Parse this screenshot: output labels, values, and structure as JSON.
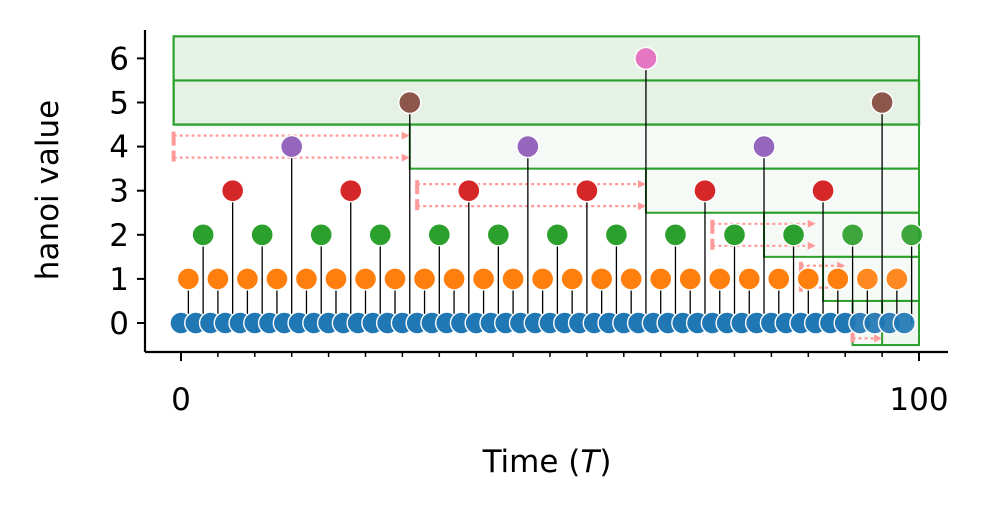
{
  "chart_data": {
    "type": "scatter",
    "title": "",
    "xlabel": "Time (",
    "xlabel_var": "T",
    "xlabel_end": ")",
    "ylabel": "hanoi value",
    "xlim": [
      -2,
      104
    ],
    "ylim": [
      -0.65,
      6.6
    ],
    "x_major_ticks": [
      0,
      100
    ],
    "x_tick_labels": [
      "0",
      "100"
    ],
    "x_minor_ticks": [
      5,
      10,
      15,
      20,
      25,
      30,
      35,
      40,
      45,
      50,
      55,
      60,
      65,
      70,
      75,
      80,
      85,
      90,
      95
    ],
    "y_ticks": [
      0,
      1,
      2,
      3,
      4,
      5,
      6
    ],
    "y_tick_labels": [
      "0",
      "1",
      "2",
      "3",
      "4",
      "5",
      "6"
    ],
    "grid": false,
    "legend": "none",
    "x_step": 2,
    "values": [
      0,
      1,
      0,
      2,
      0,
      1,
      0,
      3,
      0,
      1,
      0,
      2,
      0,
      1,
      0,
      4,
      0,
      1,
      0,
      2,
      0,
      1,
      0,
      3,
      0,
      1,
      0,
      2,
      0,
      1,
      0,
      5,
      0,
      1,
      0,
      2,
      0,
      1,
      0,
      3,
      0,
      1,
      0,
      2,
      0,
      1,
      0,
      4,
      0,
      1,
      0,
      2,
      0,
      1,
      0,
      3,
      0,
      1,
      0,
      2,
      0,
      1,
      0,
      6,
      0,
      1,
      0,
      2,
      0,
      1,
      0,
      3,
      0,
      1,
      0,
      2,
      0,
      1,
      0,
      4,
      0,
      1,
      0,
      2,
      0,
      1,
      0,
      3,
      0,
      1,
      0,
      2,
      0,
      1,
      0,
      5,
      0,
      1,
      0,
      2
    ],
    "window_values": [
      1,
      1,
      2,
      5
    ],
    "level_colors": [
      "#1f77b4",
      "#ff7f0e",
      "#2ca02c",
      "#d62728",
      "#9467bd",
      "#8c564b",
      "#e377c2"
    ],
    "box_color": "#2ca02c",
    "box_fill": "#e6f2e6",
    "arrow_color": "#ff9a9a",
    "boxes": [
      {
        "x0": -1,
        "x1": 100,
        "y0": 4.5,
        "y1": 6.5
      },
      {
        "x0": -1,
        "x1": 100,
        "y0": 4.5,
        "y1": 5.5
      },
      {
        "x0": 31,
        "x1": 100,
        "y0": 3.5,
        "y1": 4.5
      },
      {
        "x0": 63,
        "x1": 100,
        "y0": 2.5,
        "y1": 3.5
      },
      {
        "x0": 79,
        "x1": 100,
        "y0": 1.5,
        "y1": 2.5
      },
      {
        "x0": 87,
        "x1": 100,
        "y0": 0.5,
        "y1": 1.5
      },
      {
        "x0": 91,
        "x1": 100,
        "y0": -0.5,
        "y1": 0.5
      },
      {
        "x0": 95,
        "x1": 100,
        "y0": -0.5,
        "y1": 0.5
      }
    ],
    "jumps": [
      {
        "x0": -1,
        "x1": 31,
        "y": 4.0
      },
      {
        "x0": 32,
        "x1": 63,
        "y": 2.9
      },
      {
        "x0": 72,
        "x1": 86,
        "y": 2.0
      },
      {
        "x0": 84,
        "x1": 90,
        "y": 1.05
      },
      {
        "x0": 91,
        "x1": 95,
        "y": -0.1
      }
    ]
  }
}
